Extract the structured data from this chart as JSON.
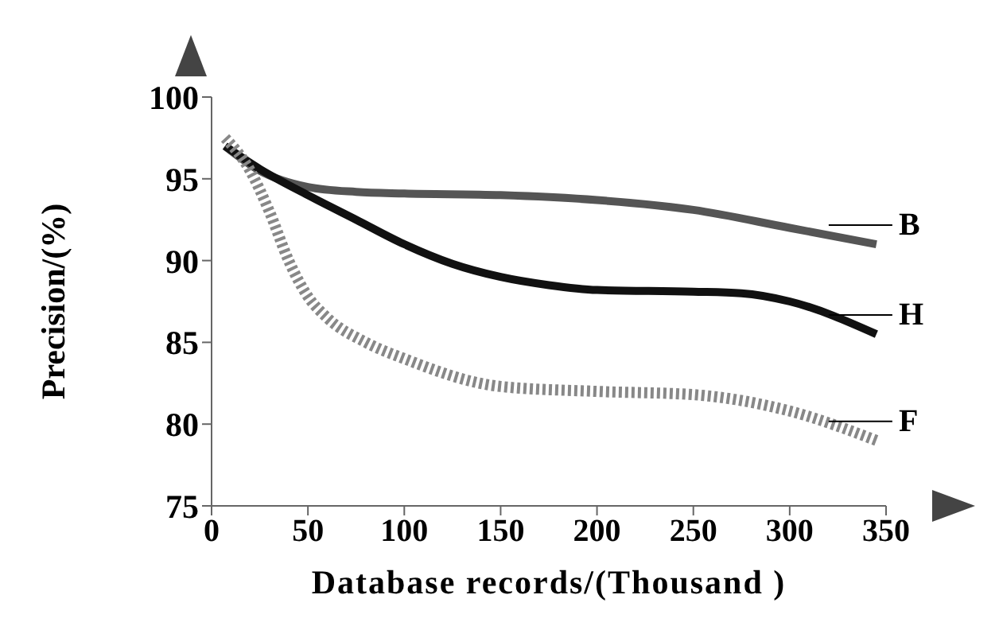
{
  "chart_data": {
    "type": "line",
    "xlabel": "Database records/(Thousand )",
    "ylabel": "Precision/(%)",
    "xlim": [
      0,
      350
    ],
    "xticks": [
      0,
      50,
      100,
      150,
      200,
      250,
      300,
      350
    ],
    "ylim": [
      75,
      100
    ],
    "yticks": [
      75,
      80,
      85,
      90,
      95,
      100
    ],
    "marker": "none",
    "series": [
      {
        "name": "B",
        "color": "#555555",
        "line_style": "solid",
        "x": [
          7,
          25,
          50,
          75,
          100,
          150,
          200,
          250,
          300,
          345
        ],
        "values": [
          97,
          95.5,
          94.5,
          94.2,
          94.1,
          94,
          93.7,
          93.1,
          92,
          91
        ]
      },
      {
        "name": "H",
        "color": "#111111",
        "line_style": "solid",
        "x": [
          7,
          25,
          50,
          75,
          100,
          125,
          150,
          175,
          200,
          250,
          275,
          300,
          345
        ],
        "values": [
          97,
          95.6,
          94,
          92.5,
          91,
          89.8,
          89,
          88.5,
          88.2,
          88.1,
          88,
          87.5,
          85.5
        ]
      },
      {
        "name": "F",
        "color": "#888888",
        "line_style": "dotted",
        "x": [
          7,
          20,
          30,
          40,
          50,
          60,
          80,
          100,
          150,
          200,
          250,
          300,
          345
        ],
        "values": [
          97.5,
          95.5,
          93,
          90,
          87.8,
          86.5,
          85,
          84,
          82.3,
          82,
          81.8,
          80.8,
          79
        ]
      }
    ]
  }
}
